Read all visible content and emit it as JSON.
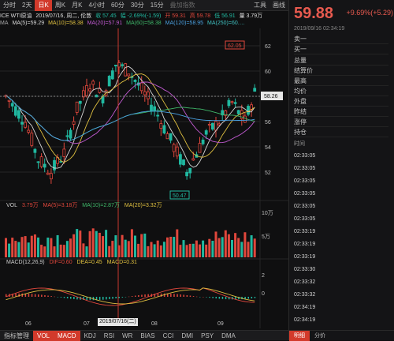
{
  "toolbar": {
    "items": [
      "分时",
      "2天",
      "日K",
      "周K",
      "月K",
      "4小时",
      "60分",
      "30分",
      "15分",
      "叠加指数",
      "工具",
      "画线"
    ],
    "active_index": 2
  },
  "info": {
    "symbol": "ICE WTI原油",
    "date": "2019/07/16, 周二, 伦敦",
    "close": "收 57.45",
    "change": "幅 -2.69%(-1.59)",
    "open": "开 59.31",
    "high": "高 59.78",
    "low": "低 56.91",
    "volume": "量 3.79万"
  },
  "ma": {
    "label": "MA",
    "ma5": "MA(5)=59.29",
    "ma10": "MA(10)=58.38",
    "ma20": "MA(20)=57.91",
    "ma60": "MA(60)=58.38",
    "ma120": "MA(120)=58.95",
    "ma250": "MA(250)=60.…"
  },
  "price_axis": {
    "ticks": [
      "62",
      "60",
      "58",
      "56",
      "54",
      "52"
    ],
    "current": "58.26",
    "high_tag": "62.05",
    "low_tag": "50.47"
  },
  "volume": {
    "label": "VOL",
    "value": "3.79万",
    "ma5": "MA(5)=3.18万",
    "ma10": "MA(10)=2.87万",
    "ma20": "MA(20)=3.32万",
    "ticks": [
      "10万",
      "5万"
    ]
  },
  "macd": {
    "label": "MACD(12,26,9)",
    "dif": "DIF=0.60",
    "dea": "DEA=0.45",
    "macd": "MACD=0.31",
    "ticks": [
      "2",
      "0"
    ]
  },
  "x_axis": {
    "months": [
      "06",
      "07",
      "08",
      "09"
    ],
    "cursor_date": "2019/07/16(二)"
  },
  "bottom_tabs": {
    "items": [
      "指标管理",
      "VOL",
      "MACD",
      "KDJ",
      "RSI",
      "WR",
      "BIAS",
      "CCI",
      "DMI",
      "PSY",
      "DMA"
    ],
    "active_index": 1
  },
  "quote": {
    "price": "59.88",
    "change": "+9.69%(+5.29)",
    "time": "2019/09/16 02:34:19",
    "rows": [
      "卖一",
      "买一",
      "总量",
      "结算价",
      "最高",
      "均价",
      "外盘",
      "昨结",
      "涨停",
      "持仓"
    ],
    "trades_header": "时间",
    "trades": [
      "02:33:05",
      "02:33:05",
      "02:33:05",
      "02:33:05",
      "02:33:05",
      "02:33:05",
      "02:33:19",
      "02:33:19",
      "02:33:19",
      "02:33:30",
      "02:33:32",
      "02:33:32",
      "02:34:19",
      "02:34:19"
    ],
    "tabs": [
      "明细",
      "分价"
    ]
  },
  "colors": {
    "up": "#e0473c",
    "down": "#20b8a0",
    "ma5": "#d8d8d8",
    "ma10": "#e0c040",
    "ma20": "#c05ad0",
    "ma60": "#3fb86a",
    "ma120": "#4aa0e0"
  }
}
